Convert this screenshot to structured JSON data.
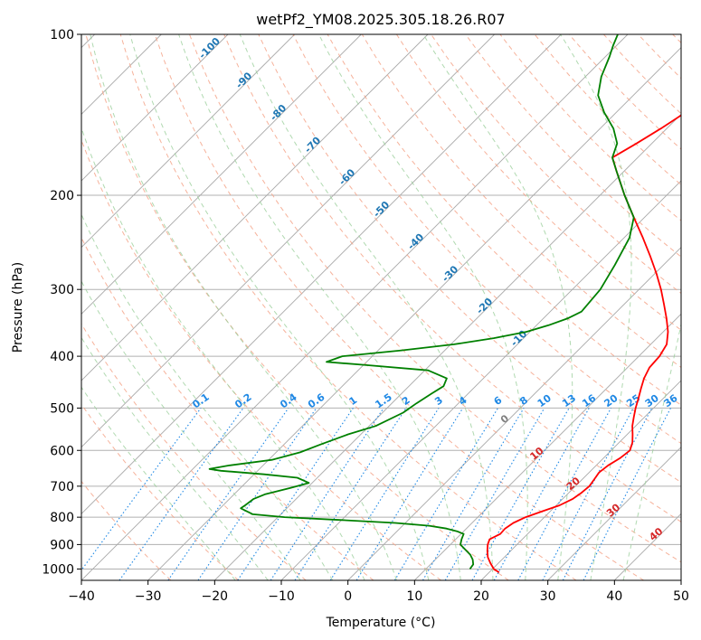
{
  "chart_data": {
    "type": "skew-t log-p",
    "title": "wetPf2_YM08.2025.305.18.26.R07",
    "xlabel": "Temperature (°C)",
    "ylabel": "Pressure (hPa)",
    "xlim": [
      -40,
      50
    ],
    "ylim": [
      1050,
      100
    ],
    "y_scale": "log",
    "grid": true,
    "x_ticks": [
      "−40",
      "−30",
      "−20",
      "−10",
      "0",
      "10",
      "20",
      "30",
      "40",
      "50"
    ],
    "y_ticks": [
      100,
      200,
      300,
      400,
      500,
      600,
      700,
      800,
      900,
      1000
    ],
    "y_tick_labels": [
      "100",
      "200",
      "300",
      "400",
      "500",
      "600",
      "700",
      "800",
      "900",
      "1000"
    ],
    "colors": {
      "temperature": "#ff0000",
      "dewpoint": "#008000",
      "isotherm": "#a8a8a8",
      "grid": "#b0b0b0",
      "dry_adiabat": "#f4a58a",
      "moist_adiabat": "#9ccf9c",
      "mixing_ratio": "#1e88e5",
      "isotherm_label": "#1f77b4",
      "dry_adiabat_label": "#d62728",
      "zero_label": "#808080"
    },
    "isotherm_labels": [
      "-100",
      "-90",
      "-80",
      "-70",
      "-60",
      "-50",
      "-40",
      "-30",
      "-20",
      "-10"
    ],
    "mixing_ratio_labels": [
      "0.1",
      "0.2",
      "0.4",
      "0.6",
      "1",
      "1.5",
      "2",
      "3",
      "4",
      "6",
      "8",
      "10",
      "13",
      "16",
      "20",
      "25",
      "30",
      "36"
    ],
    "dry_adiabat_labels": [
      "0",
      "10",
      "20",
      "30",
      "40"
    ],
    "series": [
      {
        "name": "",
        "role": "temperature",
        "points": [
          [
            1015,
            21.5
          ],
          [
            1000,
            20.2
          ],
          [
            975,
            18.8
          ],
          [
            950,
            17.5
          ],
          [
            925,
            16.5
          ],
          [
            900,
            15.6
          ],
          [
            880,
            15.1
          ],
          [
            860,
            15.9
          ],
          [
            840,
            15.8
          ],
          [
            820,
            16.2
          ],
          [
            800,
            17.2
          ],
          [
            780,
            18.8
          ],
          [
            760,
            20.5
          ],
          [
            740,
            21.5
          ],
          [
            720,
            21.9
          ],
          [
            700,
            22.1
          ],
          [
            680,
            21.8
          ],
          [
            660,
            21.5
          ],
          [
            640,
            21.8
          ],
          [
            620,
            22.5
          ],
          [
            600,
            22.8
          ],
          [
            580,
            22.0
          ],
          [
            560,
            20.8
          ],
          [
            540,
            19.5
          ],
          [
            520,
            18.4
          ],
          [
            500,
            17.3
          ],
          [
            480,
            16.3
          ],
          [
            460,
            15.2
          ],
          [
            440,
            14.1
          ],
          [
            420,
            13.3
          ],
          [
            400,
            13.1
          ],
          [
            380,
            12.4
          ],
          [
            360,
            10.7
          ],
          [
            340,
            8.5
          ],
          [
            320,
            6.0
          ],
          [
            300,
            3.3
          ],
          [
            280,
            0.2
          ],
          [
            260,
            -3.3
          ],
          [
            240,
            -7.2
          ],
          [
            220,
            -11.6
          ],
          [
            200,
            -16.3
          ],
          [
            180,
            -21.2
          ],
          [
            170,
            -23.8
          ],
          [
            160,
            -22.3
          ],
          [
            150,
            -20.9
          ],
          [
            140,
            -19.6
          ],
          [
            130,
            -18.4
          ],
          [
            120,
            -17.4
          ],
          [
            110,
            -17.8
          ],
          [
            100,
            -19.7
          ]
        ]
      },
      {
        "name": "",
        "role": "dewpoint",
        "points": [
          [
            1000,
            16.6
          ],
          [
            980,
            16.4
          ],
          [
            960,
            15.6
          ],
          [
            940,
            14.5
          ],
          [
            920,
            13.0
          ],
          [
            900,
            11.5
          ],
          [
            880,
            10.9
          ],
          [
            860,
            10.4
          ],
          [
            850,
            9.0
          ],
          [
            840,
            7.0
          ],
          [
            830,
            4.0
          ],
          [
            820,
            -1.5
          ],
          [
            810,
            -10.0
          ],
          [
            800,
            -19.0
          ],
          [
            790,
            -24.2
          ],
          [
            770,
            -26.9
          ],
          [
            760,
            -26.7
          ],
          [
            740,
            -26.4
          ],
          [
            725,
            -25.4
          ],
          [
            705,
            -22.5
          ],
          [
            690,
            -20.5
          ],
          [
            675,
            -23.0
          ],
          [
            665,
            -28.5
          ],
          [
            655,
            -35.5
          ],
          [
            650,
            -37.5
          ],
          [
            640,
            -35.0
          ],
          [
            625,
            -29.5
          ],
          [
            605,
            -26.4
          ],
          [
            585,
            -24.5
          ],
          [
            560,
            -21.9
          ],
          [
            540,
            -19.0
          ],
          [
            510,
            -16.9
          ],
          [
            490,
            -16.3
          ],
          [
            470,
            -15.5
          ],
          [
            455,
            -14.8
          ],
          [
            440,
            -15.5
          ],
          [
            425,
            -19.5
          ],
          [
            415,
            -30.0
          ],
          [
            410,
            -36.0
          ],
          [
            400,
            -34.5
          ],
          [
            390,
            -26.5
          ],
          [
            380,
            -19.5
          ],
          [
            370,
            -14.5
          ],
          [
            360,
            -10.5
          ],
          [
            350,
            -8.2
          ],
          [
            340,
            -6.4
          ],
          [
            330,
            -5.3
          ],
          [
            300,
            -5.8
          ],
          [
            270,
            -7.3
          ],
          [
            240,
            -9.2
          ],
          [
            220,
            -11.6
          ],
          [
            200,
            -16.3
          ],
          [
            180,
            -21.2
          ],
          [
            170,
            -23.8
          ],
          [
            160,
            -25.2
          ],
          [
            150,
            -28.0
          ],
          [
            140,
            -31.8
          ],
          [
            130,
            -35.3
          ],
          [
            120,
            -37.6
          ],
          [
            110,
            -39.4
          ],
          [
            105,
            -40.5
          ],
          [
            100,
            -41.5
          ]
        ]
      }
    ]
  }
}
